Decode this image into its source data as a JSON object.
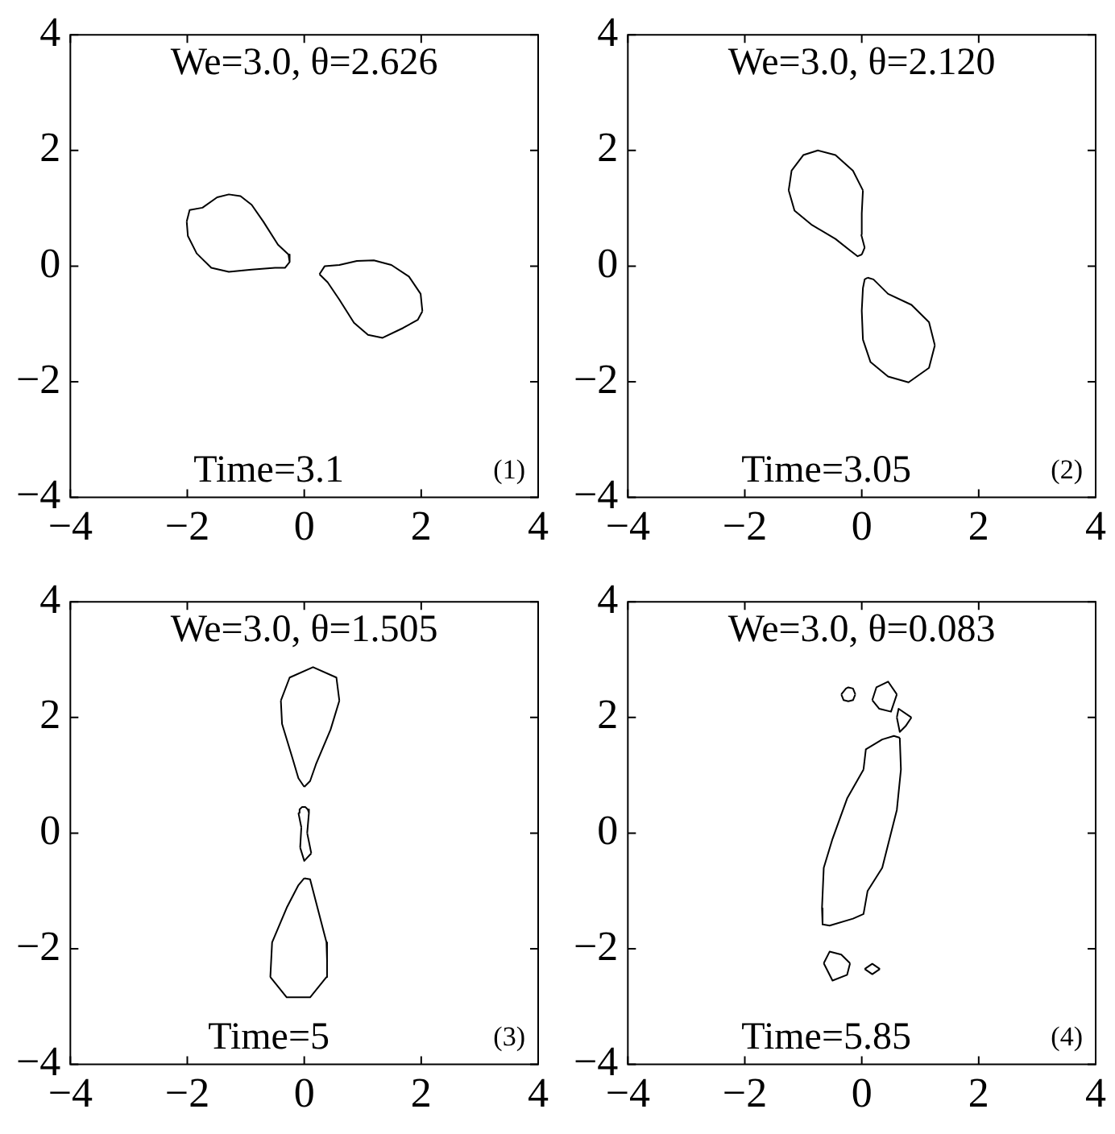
{
  "chart_data": [
    {
      "type": "line",
      "xlim": [
        -4,
        4
      ],
      "ylim": [
        -4,
        4
      ],
      "xticks": [
        -4,
        -2,
        0,
        2,
        4
      ],
      "yticks": [
        -4,
        -2,
        0,
        2,
        4
      ],
      "grid": false,
      "legend": false,
      "marker": "none",
      "line_style": "solid",
      "annotations": [
        "We=3.0, θ=2.626",
        "Time=3.1",
        "(1)"
      ],
      "series": [
        {
          "color": "#000000",
          "x": [
            -2.01,
            -1.96,
            -1.74,
            -1.49,
            -1.29,
            -1.09,
            -0.9,
            -0.7,
            -0.45,
            -0.27,
            -0.25,
            null,
            -2.01,
            -1.99,
            -1.84,
            -1.59,
            -1.29,
            -0.9,
            -0.5,
            -0.33,
            -0.25
          ],
          "values": [
            0.77,
            0.97,
            1.01,
            1.19,
            1.24,
            1.21,
            1.06,
            0.77,
            0.37,
            0.2,
            0.07,
            null,
            0.77,
            0.52,
            0.22,
            -0.03,
            -0.1,
            -0.06,
            -0.03,
            -0.03,
            0.07
          ]
        },
        {
          "color": "#000000",
          "x": [
            0.26,
            0.35,
            0.6,
            0.9,
            1.19,
            1.49,
            1.79,
            1.99,
            2.02,
            null,
            0.26,
            0.4,
            0.6,
            0.85,
            1.09,
            1.34,
            1.69,
            1.94,
            2.02
          ],
          "values": [
            -0.14,
            0,
            0.02,
            0.09,
            0.1,
            0.02,
            -0.18,
            -0.48,
            -0.78,
            null,
            -0.14,
            -0.28,
            -0.58,
            -0.98,
            -1.19,
            -1.24,
            -1.07,
            -0.93,
            -0.78
          ]
        }
      ]
    },
    {
      "type": "line",
      "xlim": [
        -4,
        4
      ],
      "ylim": [
        -4,
        4
      ],
      "xticks": [
        -4,
        -2,
        0,
        2,
        4
      ],
      "yticks": [
        -4,
        -2,
        0,
        2,
        4
      ],
      "grid": false,
      "legend": false,
      "marker": "none",
      "line_style": "solid",
      "annotations": [
        "We=3.0, θ=2.120",
        "Time=3.05",
        "(2)"
      ],
      "series": [
        {
          "color": "#000000",
          "x": [
            -1.25,
            -1.15,
            -0.85,
            -0.45,
            -0.2,
            -0.07,
            0,
            null,
            -1.25,
            -1.2,
            -1.0,
            -0.75,
            -0.45,
            -0.15,
            0.02,
            null,
            -0.01,
            0,
            0.02,
            null,
            -0.01,
            0.05,
            null,
            0,
            0.05
          ],
          "values": [
            1.31,
            0.96,
            0.71,
            0.47,
            0.27,
            0.17,
            0.2,
            null,
            1.31,
            1.65,
            1.92,
            2.0,
            1.92,
            1.65,
            1.31,
            null,
            0.55,
            0.91,
            1.31,
            null,
            0.55,
            0.32,
            null,
            0.2,
            0.32
          ]
        },
        {
          "color": "#000000",
          "x": [
            0.1,
            0.2,
            0.45,
            0.85,
            1.15,
            1.25,
            null,
            0.02,
            0.15,
            0.45,
            0.8,
            1.15,
            1.25,
            null,
            0,
            0.02,
            null,
            0,
            0.02,
            0.05,
            0.1
          ],
          "values": [
            -0.2,
            -0.23,
            -0.48,
            -0.67,
            -0.97,
            -1.37,
            null,
            -1.27,
            -1.66,
            -1.91,
            -2.01,
            -1.76,
            -1.37,
            null,
            -0.77,
            -1.27,
            null,
            -0.77,
            -0.38,
            -0.23,
            -0.2
          ]
        }
      ]
    },
    {
      "type": "line",
      "xlim": [
        -4,
        4
      ],
      "ylim": [
        -4,
        4
      ],
      "xticks": [
        -4,
        -2,
        0,
        2,
        4
      ],
      "yticks": [
        -4,
        -2,
        0,
        2,
        4
      ],
      "grid": false,
      "legend": false,
      "marker": "none",
      "line_style": "solid",
      "annotations": [
        "We=3.0, θ=1.505",
        "Time=5",
        "(3)"
      ],
      "series": [
        {
          "color": "#000000",
          "x": [
            -0.4,
            -0.38,
            -0.2,
            -0.1,
            0,
            null,
            -0.4,
            -0.25,
            0.15,
            0.55,
            0.6,
            null,
            0,
            0.1,
            0.2,
            0.45,
            0.6
          ],
          "values": [
            2.29,
            1.89,
            1.29,
            0.95,
            0.8,
            null,
            2.29,
            2.69,
            2.87,
            2.69,
            2.29,
            null,
            0.8,
            0.9,
            1.19,
            1.79,
            2.29
          ]
        },
        {
          "color": "#000000",
          "x": [
            -0.07,
            0,
            0.12,
            null,
            -0.07,
            -0.05,
            null,
            0.05,
            0.12
          ],
          "values": [
            -0.25,
            -0.48,
            -0.35,
            null,
            -0.25,
            0.1,
            null,
            0,
            -0.35
          ]
        },
        {
          "color": "#000000",
          "x": [
            -0.1,
            -0.05,
            null,
            0.05,
            0.08,
            null,
            -0.1,
            -0.08,
            -0.04,
            0.02,
            0.06,
            0.08
          ],
          "values": [
            0.35,
            0.1,
            null,
            0,
            0.35,
            null,
            0.35,
            0.41,
            0.45,
            0.45,
            0.41,
            0.35
          ]
        },
        {
          "color": "#000000",
          "x": [
            -0.58,
            -0.3,
            0.1,
            0.38,
            0.39,
            null,
            0,
            0.1,
            0.2,
            0.38,
            0.39,
            null,
            -0.58,
            -0.55,
            -0.3,
            -0.1,
            0
          ],
          "values": [
            -2.49,
            -2.84,
            -2.84,
            -2.49,
            -2.2,
            null,
            -0.78,
            -0.8,
            -1.19,
            -1.89,
            -2.2,
            null,
            -2.49,
            -1.89,
            -1.29,
            -0.9,
            -0.78
          ]
        }
      ]
    },
    {
      "type": "line",
      "xlim": [
        -4,
        4
      ],
      "ylim": [
        -4,
        4
      ],
      "xticks": [
        -4,
        -2,
        0,
        2,
        4
      ],
      "yticks": [
        -4,
        -2,
        0,
        2,
        4
      ],
      "grid": false,
      "legend": false,
      "marker": "none",
      "line_style": "solid",
      "annotations": [
        "We=3.0, θ=0.083",
        "Time=5.85",
        "(4)"
      ],
      "series": [
        {
          "color": "#000000",
          "x": [
            -0.68,
            -0.67,
            -0.55,
            -0.15,
            0.03,
            0.1,
            0.35,
            0.6,
            0.67,
            null,
            0.65,
            0.67,
            null,
            0.03,
            0.07,
            0.35,
            0.55,
            0.65,
            null,
            -0.68,
            -0.65,
            -0.5,
            -0.25,
            0.03
          ],
          "values": [
            -1.3,
            -1.58,
            -1.6,
            -1.48,
            -1.4,
            -1.0,
            -0.6,
            0.4,
            1.1,
            null,
            1.65,
            1.1,
            null,
            1.1,
            1.45,
            1.62,
            1.68,
            1.65,
            null,
            -1.3,
            -0.6,
            -0.1,
            0.6,
            1.1
          ]
        },
        {
          "color": "#000000",
          "x": [
            -0.35,
            -0.27,
            -0.23,
            -0.15,
            -0.11,
            null,
            -0.35,
            -0.31,
            -0.23,
            -0.15,
            -0.11
          ],
          "values": [
            2.4,
            2.5,
            2.52,
            2.5,
            2.4,
            null,
            2.4,
            2.3,
            2.28,
            2.3,
            2.4
          ]
        },
        {
          "color": "#000000",
          "x": [
            0.18,
            0.25,
            0.45,
            0.6,
            null,
            0.18,
            0.3,
            0.5,
            0.6
          ],
          "values": [
            2.3,
            2.52,
            2.62,
            2.4,
            null,
            2.3,
            2.15,
            2.1,
            2.4
          ]
        },
        {
          "color": "#000000",
          "x": [
            0.6,
            0.63,
            0.85,
            null,
            0.6,
            0.65,
            0.75,
            0.85
          ],
          "values": [
            2.0,
            2.15,
            2.0,
            null,
            2.0,
            1.75,
            1.85,
            2.0
          ]
        },
        {
          "color": "#000000",
          "x": [
            -0.65,
            -0.55,
            -0.35,
            -0.2,
            null,
            -0.65,
            -0.5,
            -0.25,
            -0.2
          ],
          "values": [
            -2.25,
            -2.05,
            -2.1,
            -2.25,
            null,
            -2.25,
            -2.55,
            -2.45,
            -2.25
          ]
        },
        {
          "color": "#000000",
          "x": [
            0.05,
            0.18,
            0.31,
            null,
            0.05,
            0.18,
            0.31
          ],
          "values": [
            -2.35,
            -2.26,
            -2.35,
            null,
            -2.35,
            -2.44,
            -2.35
          ]
        }
      ]
    }
  ]
}
